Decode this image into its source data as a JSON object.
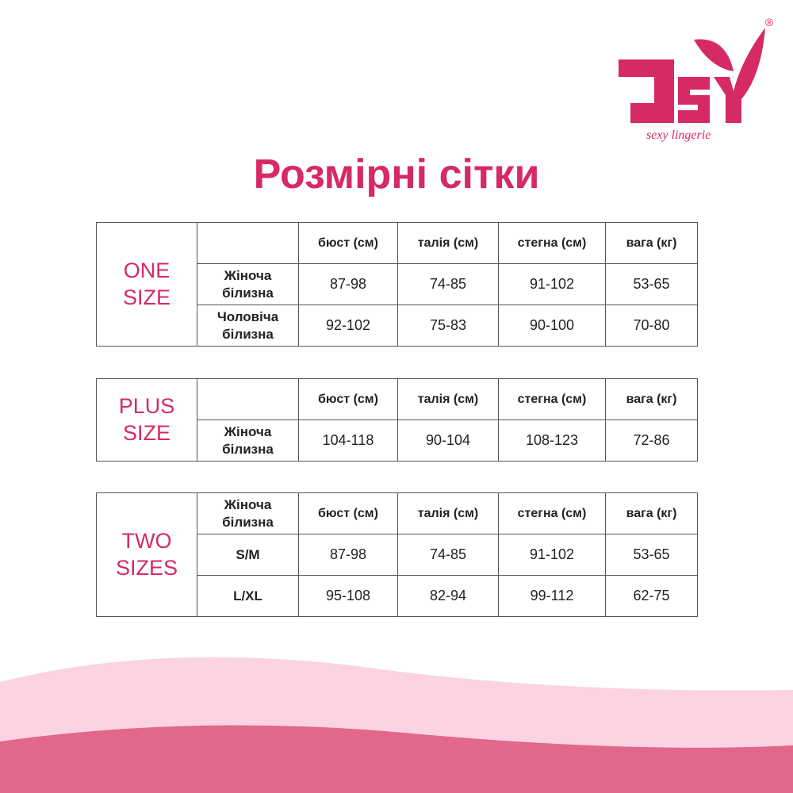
{
  "logo": {
    "text": "JSY",
    "tagline": "sexy lingerie",
    "registered": "®",
    "color": "#d62a62"
  },
  "title": "Розмірні сітки",
  "headers": [
    "бюст (см)",
    "талія (см)",
    "стегна (см)",
    "вага (кг)"
  ],
  "tables": [
    {
      "label_1": "ONE",
      "label_2": "SIZE",
      "rows": [
        {
          "name": "Жіноча білизна",
          "values": [
            "87-98",
            "74-85",
            "91-102",
            "53-65"
          ]
        },
        {
          "name": "Чоловіча білизна",
          "values": [
            "92-102",
            "75-83",
            "90-100",
            "70-80"
          ]
        }
      ]
    },
    {
      "label_1": "PLUS",
      "label_2": "SIZE",
      "rows": [
        {
          "name": "Жіноча білизна",
          "values": [
            "104-118",
            "90-104",
            "108-123",
            "72-86"
          ]
        }
      ]
    },
    {
      "label_1": "TWO",
      "label_2": "SIZES",
      "corner": "Жіноча білизна",
      "rows": [
        {
          "name": "S/M",
          "values": [
            "87-98",
            "74-85",
            "91-102",
            "53-65"
          ]
        },
        {
          "name": "L/XL",
          "values": [
            "95-108",
            "82-94",
            "99-112",
            "62-75"
          ]
        }
      ]
    }
  ],
  "colors": {
    "accent": "#d62a62",
    "wave_light": "#fbd3e3",
    "wave_dark": "#e2678c"
  }
}
